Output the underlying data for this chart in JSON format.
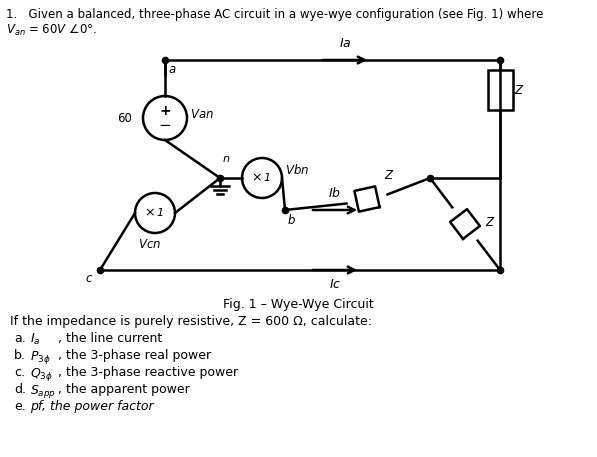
{
  "bg_color": "#ffffff",
  "line_color": "#000000",
  "fig_caption": "Fig. 1 – Wye-Wye Circuit",
  "question_text": "If the impedance is purely resistive, Z = 600 Ω, calculate:",
  "parts": [
    [
      "a.",
      "$I_a$",
      ", the line current"
    ],
    [
      "b.",
      "$P_{3\\phi}$",
      ", the 3-phase real power"
    ],
    [
      "c.",
      "$Q_{3\\phi}$",
      ", the 3-phase reactive power"
    ],
    [
      "d.",
      "$S_{app}$",
      ", the apparent power"
    ],
    [
      "e.",
      "pf, the power factor",
      ""
    ]
  ]
}
